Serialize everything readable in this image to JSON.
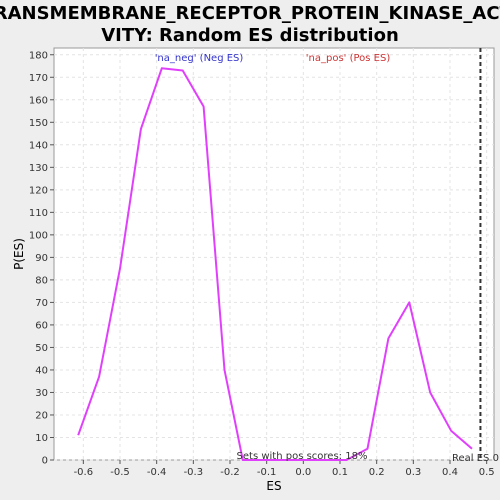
{
  "chart_data": {
    "type": "line",
    "title_line1": "TRANSMEMBRANE_RECEPTOR_PROTEIN_KINASE_ACTI",
    "title_line2": "VITY: Random ES distribution",
    "xlabel": "ES",
    "ylabel": "P(ES)",
    "xlim": [
      -0.68,
      0.52
    ],
    "ylim": [
      0,
      183
    ],
    "x_ticks": [
      -0.6,
      -0.5,
      -0.4,
      -0.3,
      -0.2,
      -0.1,
      0.0,
      0.1,
      0.2,
      0.3,
      0.4,
      0.5
    ],
    "x_tick_labels": [
      "-0.6",
      "-0.5",
      "-0.4",
      "-0.3",
      "-0.2",
      "-0.1",
      "0.0",
      "0.1",
      "0.2",
      "0.3",
      "0.4",
      "0.5"
    ],
    "y_ticks": [
      0,
      10,
      20,
      30,
      40,
      50,
      60,
      70,
      80,
      90,
      100,
      110,
      120,
      130,
      140,
      150,
      160,
      170,
      180
    ],
    "grid": true,
    "series": [
      {
        "color": "#e040fb",
        "x": [
          -0.614,
          -0.557,
          -0.5,
          -0.443,
          -0.386,
          -0.329,
          -0.272,
          -0.215,
          -0.165,
          0.118,
          0.175,
          0.232,
          0.289,
          0.346,
          0.403,
          0.46
        ],
        "y": [
          11,
          37,
          85,
          147,
          174,
          173,
          157,
          40,
          0,
          0,
          5,
          54,
          70,
          30,
          13,
          5
        ]
      }
    ],
    "annotations": {
      "neg_label": "'na_neg' (Neg ES)",
      "neg_color": "#3333cc",
      "pos_label": "'na_pos' (Pos ES)",
      "pos_color": "#cc3333",
      "sets_pos": "Sets with pos scores: 18%",
      "real_es_label": "Real ES 0"
    },
    "real_es_x": 0.483
  }
}
